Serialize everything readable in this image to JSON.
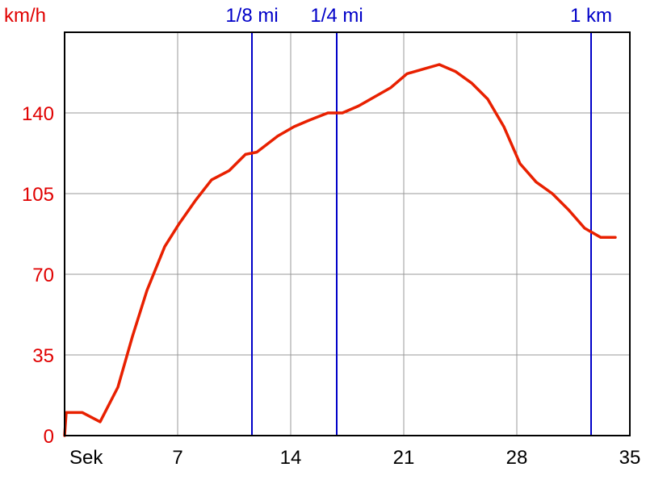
{
  "chart_data": {
    "type": "line",
    "ylabel": "km/h",
    "xlabel": "Sek",
    "xlim": [
      0,
      35
    ],
    "ylim": [
      0,
      175
    ],
    "x_ticks": [
      7,
      14,
      21,
      28,
      35
    ],
    "y_ticks": [
      0,
      35,
      70,
      105,
      140
    ],
    "grid": true,
    "series": [
      {
        "color": "#e82000",
        "x": [
          0,
          0.1,
          1.1,
          2.2,
          3.3,
          4.2,
          5.1,
          6.2,
          7.1,
          8.1,
          9.1,
          10.2,
          11.2,
          11.9,
          13.2,
          14.2,
          15.2,
          16.3,
          17.2,
          18.2,
          19.2,
          20.2,
          21.2,
          22.2,
          23.2,
          24.2,
          25.2,
          26.2,
          27.2,
          28.2,
          29.2,
          30.2,
          31.2,
          32.2,
          33.2,
          34.1
        ],
        "y": [
          0,
          10,
          10,
          6,
          21,
          43,
          63,
          82,
          92,
          102,
          111,
          115,
          122,
          123,
          130,
          134,
          137,
          140,
          140,
          143,
          147,
          151,
          157,
          159,
          161,
          158,
          153,
          146,
          134,
          118,
          110,
          105,
          98,
          90,
          86,
          86
        ]
      }
    ],
    "markers": [
      {
        "label": "1/8 mi",
        "x": 11.6,
        "color": "#0000c8"
      },
      {
        "label": "1/4 mi",
        "x": 16.85,
        "color": "#0000c8"
      },
      {
        "label": "1 km",
        "x": 32.6,
        "color": "#0000c8"
      }
    ],
    "colors": {
      "grid": "#999999",
      "axis": "#000000",
      "tick_label_x": "#000000",
      "tick_label_y": "#e00000",
      "marker": "#0000c8"
    }
  }
}
